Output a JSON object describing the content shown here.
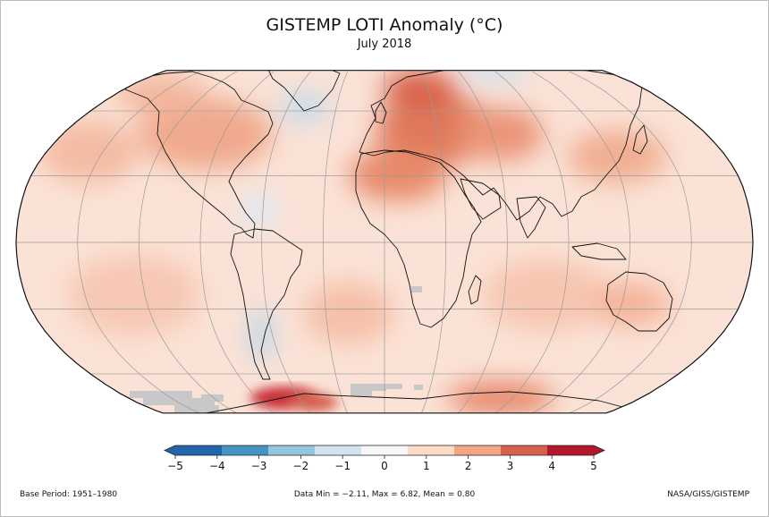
{
  "title": "GISTEMP LOTI Anomaly (°C)",
  "subtitle": "July 2018",
  "colorbar": {
    "ticks": [
      -5,
      -4,
      -3,
      -2,
      -1,
      0,
      1,
      2,
      3,
      4,
      5
    ],
    "tick_labels": [
      "−5",
      "−4",
      "−3",
      "−2",
      "−1",
      "0",
      "1",
      "2",
      "3",
      "4",
      "5"
    ],
    "colors": [
      "#2166ac",
      "#4393c3",
      "#92c5de",
      "#d1e5f0",
      "#f7f7f7",
      "#fddbc7",
      "#f4a582",
      "#d6604d",
      "#b2182b"
    ]
  },
  "footer": {
    "base_period": "Base Period: 1951–1980",
    "stats": "Data Min = −2.11, Max = 6.82, Mean = 0.80",
    "source": "NASA/GISS/GISTEMP"
  }
}
